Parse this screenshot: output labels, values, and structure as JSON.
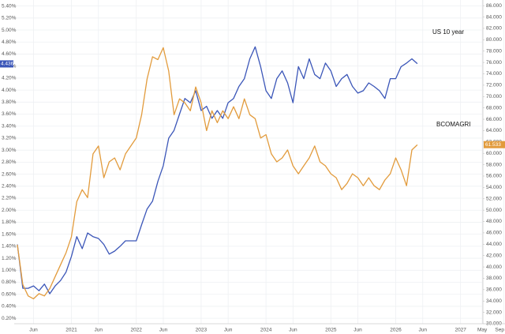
{
  "chart_data": {
    "type": "line",
    "categories": [
      null,
      null,
      null,
      "Jun",
      null,
      null,
      null,
      null,
      null,
      null,
      "2021",
      null,
      null,
      null,
      null,
      "Jun",
      null,
      null,
      null,
      null,
      null,
      null,
      "2022",
      null,
      null,
      null,
      null,
      "Jun",
      null,
      null,
      null,
      null,
      null,
      null,
      "2023",
      null,
      null,
      null,
      null,
      "Jun",
      null,
      null,
      null,
      null,
      null,
      null,
      "2024",
      null,
      null,
      null,
      null,
      "Jun",
      null,
      null,
      null,
      null,
      null,
      null,
      "2025",
      null,
      null,
      null,
      null,
      "Jun",
      null,
      null,
      null,
      null,
      null,
      null,
      "2026",
      null,
      null,
      null,
      null,
      "Jun",
      null,
      null,
      null,
      null,
      null,
      null,
      "2027",
      null,
      null,
      null,
      "May",
      null,
      null,
      null,
      "Sep"
    ],
    "series": [
      {
        "name": "US 10 year",
        "color": "#3b56b8",
        "axis": "y",
        "marker": {
          "value": 4.436,
          "label": "4.436"
        },
        "values": [
          1.43,
          0.7,
          0.7,
          0.74,
          0.66,
          0.77,
          0.61,
          0.74,
          0.83,
          0.97,
          1.23,
          1.56,
          1.36,
          1.62,
          1.56,
          1.53,
          1.43,
          1.27,
          1.32,
          1.4,
          1.49,
          1.49,
          1.49,
          1.76,
          2.02,
          2.15,
          2.48,
          2.74,
          3.2,
          3.33,
          3.6,
          3.86,
          3.79,
          3.99,
          3.66,
          3.73,
          3.53,
          3.66,
          3.53,
          3.79,
          3.86,
          4.06,
          4.19,
          4.52,
          4.72,
          4.39,
          3.99,
          3.86,
          4.19,
          4.32,
          4.12,
          3.79,
          4.39,
          4.19,
          4.52,
          4.26,
          4.19,
          4.45,
          4.32,
          4.06,
          4.19,
          4.26,
          4.06,
          3.95,
          3.99,
          4.12,
          4.06,
          3.99,
          3.86,
          4.19,
          4.19,
          4.39,
          4.45,
          4.52,
          4.44,
          null,
          null,
          null,
          null,
          null,
          null,
          null,
          null,
          null,
          null,
          null,
          null,
          null,
          null,
          null,
          null
        ]
      },
      {
        "name": "BCOMAGRI",
        "color": "#e29b3c",
        "axis": "y2",
        "marker": {
          "value": 61.533,
          "label": "61.533"
        },
        "values": [
          43.9,
          36.9,
          34.9,
          34.4,
          35.3,
          34.9,
          36.2,
          38.3,
          40.4,
          42.5,
          45.3,
          51.5,
          53.6,
          52.2,
          59.9,
          61.3,
          55.7,
          58.5,
          59.2,
          57.1,
          59.9,
          61.3,
          62.7,
          66.8,
          73.1,
          77.0,
          76.5,
          78.6,
          74.5,
          66.8,
          69.6,
          68.9,
          67.5,
          71.7,
          68.9,
          64.0,
          67.5,
          65.4,
          67.5,
          66.1,
          68.2,
          66.1,
          69.6,
          66.8,
          66.1,
          62.7,
          63.3,
          59.9,
          58.5,
          59.2,
          60.6,
          57.8,
          56.4,
          57.8,
          59.2,
          61.3,
          58.5,
          57.8,
          56.4,
          55.7,
          53.6,
          54.7,
          56.4,
          55.7,
          54.3,
          55.7,
          54.3,
          53.6,
          55.3,
          56.4,
          59.2,
          57.1,
          54.3,
          60.6,
          61.5,
          null,
          null,
          null,
          null,
          null,
          null,
          null,
          null,
          null,
          null,
          null,
          null,
          null,
          null,
          null,
          null
        ]
      }
    ],
    "ylim": [
      0.11,
      5.5
    ],
    "yticks": [
      {
        "value": 0.2,
        "label": "0.20%"
      },
      {
        "value": 0.4,
        "label": "0.40%"
      },
      {
        "value": 0.6,
        "label": "0.60%"
      },
      {
        "value": 0.8,
        "label": "0.80%"
      },
      {
        "value": 1.0,
        "label": "1.00%"
      },
      {
        "value": 1.2,
        "label": "1.20%"
      },
      {
        "value": 1.4,
        "label": "1.40%"
      },
      {
        "value": 1.6,
        "label": "1.60%"
      },
      {
        "value": 1.8,
        "label": "1.80%"
      },
      {
        "value": 2.0,
        "label": "2.00%"
      },
      {
        "value": 2.2,
        "label": "2.20%"
      },
      {
        "value": 2.4,
        "label": "2.40%"
      },
      {
        "value": 2.6,
        "label": "2.60%"
      },
      {
        "value": 2.8,
        "label": "2.80%"
      },
      {
        "value": 3.0,
        "label": "3.00%"
      },
      {
        "value": 3.2,
        "label": "3.20%"
      },
      {
        "value": 3.4,
        "label": "3.40%"
      },
      {
        "value": 3.6,
        "label": "3.60%"
      },
      {
        "value": 3.8,
        "label": "3.80%"
      },
      {
        "value": 4.0,
        "label": "4.00%"
      },
      {
        "value": 4.2,
        "label": "4.20%"
      },
      {
        "value": 4.4,
        "label": "4.40%"
      },
      {
        "value": 4.6,
        "label": "4.60%"
      },
      {
        "value": 4.8,
        "label": "4.80%"
      },
      {
        "value": 5.0,
        "label": "5.00%"
      },
      {
        "value": 5.2,
        "label": "5.20%"
      },
      {
        "value": 5.4,
        "label": "5.40%"
      }
    ],
    "y2lim": [
      30,
      87
    ],
    "y2ticks": [
      {
        "value": 30,
        "label": "30.000"
      },
      {
        "value": 32,
        "label": "32.000"
      },
      {
        "value": 34,
        "label": "34.000"
      },
      {
        "value": 36,
        "label": "36.000"
      },
      {
        "value": 38,
        "label": "38.000"
      },
      {
        "value": 40,
        "label": "40.000"
      },
      {
        "value": 42,
        "label": "42.000"
      },
      {
        "value": 44,
        "label": "44.000"
      },
      {
        "value": 46,
        "label": "46.000"
      },
      {
        "value": 48,
        "label": "48.000"
      },
      {
        "value": 50,
        "label": "50.000"
      },
      {
        "value": 52,
        "label": "52.000"
      },
      {
        "value": 54,
        "label": "54.000"
      },
      {
        "value": 56,
        "label": "56.000"
      },
      {
        "value": 58,
        "label": "58.000"
      },
      {
        "value": 60,
        "label": "60.000"
      },
      {
        "value": 62,
        "label": "62.000"
      },
      {
        "value": 64,
        "label": "64.000"
      },
      {
        "value": 66,
        "label": "66.000"
      },
      {
        "value": 68,
        "label": "68.000"
      },
      {
        "value": 70,
        "label": "70.000"
      },
      {
        "value": 72,
        "label": "72.000"
      },
      {
        "value": 74,
        "label": "74.000"
      },
      {
        "value": 76,
        "label": "76.000"
      },
      {
        "value": 78,
        "label": "78.000"
      },
      {
        "value": 80,
        "label": "80.000"
      },
      {
        "value": 82,
        "label": "82.000"
      },
      {
        "value": 84,
        "label": "84.000"
      },
      {
        "value": 86,
        "label": "86.000"
      }
    ],
    "grid": true
  }
}
